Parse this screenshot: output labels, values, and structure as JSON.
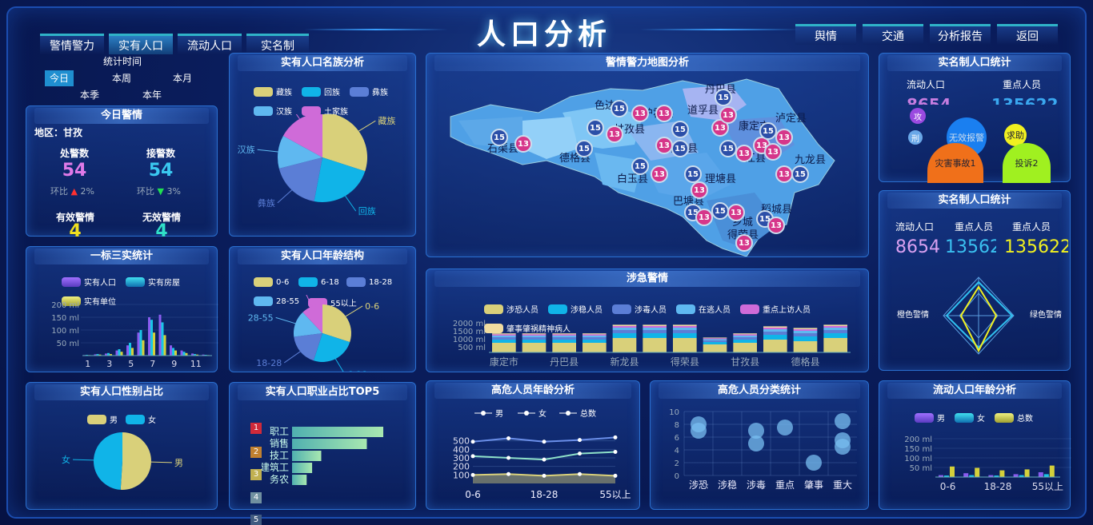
{
  "header": {
    "title": "人口分析"
  },
  "left_tabs": [
    "警情警力",
    "实有人口",
    "流动人口",
    "实名制"
  ],
  "right_tabs": [
    "舆情",
    "交通",
    "分析报告",
    "返回"
  ],
  "stat_time": {
    "title": "统计时间",
    "options": [
      "今日",
      "本周",
      "本月",
      "本季",
      "本年"
    ]
  },
  "today_alert": {
    "title": "今日警情",
    "region": "地区：甘孜",
    "handled_label": "处警数",
    "handled_value": "54",
    "handled_change": "环比 ",
    "handled_pct": "2%",
    "received_label": "接警数",
    "received_value": "54",
    "received_change": "环比 ",
    "received_pct": "3%",
    "valid_label": "有效警情",
    "valid_value": "4",
    "invalid_label": "无效警情",
    "invalid_value": "4",
    "colors": {
      "down": "#ff3030",
      "up": "#20e050"
    }
  },
  "yibiao": {
    "title": "一标三实统计",
    "legend": [
      "实有人口",
      "实有房屋",
      "实有单位"
    ],
    "chart_data": {
      "type": "bar",
      "categories": [
        "1",
        "2",
        "3",
        "4",
        "5",
        "6",
        "7",
        "8",
        "9",
        "10",
        "11",
        "12"
      ],
      "ylim": [
        0,
        200
      ],
      "yticks": [
        "200 ml",
        "150 ml",
        "100 ml",
        "50 ml"
      ],
      "xticks": [
        "1",
        "3",
        "5",
        "7",
        "9",
        "11"
      ],
      "series": [
        {
          "name": "实有人口",
          "values": [
            2,
            5,
            8,
            20,
            40,
            90,
            150,
            160,
            40,
            20,
            8,
            4
          ]
        },
        {
          "name": "实有房屋",
          "values": [
            3,
            6,
            10,
            25,
            50,
            100,
            140,
            130,
            30,
            15,
            6,
            3
          ]
        },
        {
          "name": "实有单位",
          "values": [
            2,
            4,
            6,
            15,
            30,
            60,
            90,
            80,
            20,
            10,
            4,
            2
          ]
        }
      ]
    }
  },
  "ethnic": {
    "title": "实有人口名族分析",
    "legend": [
      "藏族",
      "回族",
      "彝族",
      "汉族",
      "土家族"
    ],
    "chart_data": {
      "type": "pie",
      "labels": [
        "藏族",
        "回族",
        "彝族",
        "汉族",
        "土家族"
      ],
      "values": [
        30,
        23,
        18,
        12,
        17
      ]
    },
    "labels_out": [
      "藏族",
      "回族",
      "彝族",
      "汉族",
      "土家族"
    ]
  },
  "age_struct": {
    "title": "实有人口年龄结构",
    "legend": [
      "0-6",
      "6-18",
      "18-28",
      "28-55",
      "55以上"
    ],
    "chart_data": {
      "type": "pie",
      "labels": [
        "0-6",
        "6-18",
        "18-28",
        "28-55",
        "55以上"
      ],
      "values": [
        30,
        25,
        18,
        15,
        12
      ]
    },
    "labels_out": [
      "0-6",
      "6-18",
      "18-28",
      "28-55",
      "55以上"
    ]
  },
  "gender": {
    "title": "实有人口性别占比",
    "legend": [
      "男",
      "女"
    ],
    "chart_data": {
      "type": "pie",
      "labels": [
        "男",
        "女"
      ],
      "values": [
        51,
        49
      ]
    },
    "labels_out": [
      "男",
      "女"
    ]
  },
  "occupation": {
    "title": "实有人口职业占比TOP5",
    "ranks": [
      "1",
      "2",
      "3",
      "4",
      "5"
    ],
    "chart_data": {
      "type": "bar",
      "categories": [
        "职工",
        "销售",
        "技工",
        "建筑工",
        "务农"
      ],
      "values": [
        100,
        82,
        32,
        22,
        16
      ]
    }
  },
  "map": {
    "title": "警情警力地图分析",
    "counties": [
      "丹巴县",
      "色达县",
      "炉霍县",
      "道孚县",
      "泸定县",
      "甘孜县",
      "康定市",
      "石渠县",
      "新龙县",
      "德格县",
      "江县",
      "九龙县",
      "白玉县",
      "理塘县",
      "巴塘县",
      "稻城县",
      "乡城",
      "得荣县"
    ],
    "pin_values": [
      "15",
      "13"
    ]
  },
  "sheji": {
    "title": "涉急警情",
    "legend": [
      "涉恐人员",
      "涉稳人员",
      "涉毒人员",
      "在逃人员",
      "重点上访人员",
      "肇事肇祸精神病人"
    ],
    "chart_data": {
      "type": "bar",
      "categories": [
        "康定市",
        "泸定县",
        "丹巴县",
        "九龙县",
        "新龙县",
        "道孚县",
        "得荣县",
        "炉霍县",
        "甘孜县",
        "色达县",
        "德格县",
        "石渠县"
      ],
      "xticks": [
        "康定市",
        "丹巴县",
        "新龙县",
        "得荣县",
        "甘孜县",
        "德格县"
      ],
      "yticks": [
        "2000 ml",
        "1500 ml",
        "1000 ml",
        "500 ml"
      ],
      "ylim": [
        0,
        2000
      ],
      "series": [
        {
          "name": "涉恐人员",
          "values": [
            600,
            600,
            600,
            600,
            900,
            900,
            900,
            500,
            600,
            800,
            700,
            900
          ]
        },
        {
          "name": "涉稳人员",
          "values": [
            200,
            200,
            200,
            200,
            300,
            300,
            300,
            150,
            200,
            300,
            300,
            300
          ]
        },
        {
          "name": "涉毒人员",
          "values": [
            150,
            150,
            150,
            150,
            200,
            200,
            200,
            100,
            150,
            200,
            200,
            200
          ]
        },
        {
          "name": "在逃人员",
          "values": [
            100,
            100,
            100,
            100,
            150,
            150,
            150,
            80,
            100,
            150,
            150,
            150
          ]
        },
        {
          "name": "重点上访人员",
          "values": [
            80,
            80,
            80,
            80,
            100,
            100,
            100,
            60,
            80,
            100,
            100,
            100
          ]
        },
        {
          "name": "肇事肇祸精神病人",
          "values": [
            60,
            60,
            60,
            60,
            80,
            80,
            80,
            40,
            60,
            80,
            80,
            80
          ]
        }
      ]
    }
  },
  "high_risk_age": {
    "title": "高危人员年龄分析",
    "legend": [
      "男",
      "女",
      "总数"
    ],
    "chart_data": {
      "type": "line",
      "categories": [
        "0-6",
        "6-18",
        "18-28",
        "28-55",
        "55以上"
      ],
      "xticks": [
        "0-6",
        "18-28",
        "55以上"
      ],
      "yticks": [
        "500",
        "400",
        "300",
        "200",
        "100"
      ],
      "ylim": [
        0,
        600
      ],
      "series": [
        {
          "name": "总数",
          "values": [
            490,
            530,
            490,
            510,
            540
          ]
        },
        {
          "name": "女",
          "values": [
            320,
            300,
            280,
            350,
            370
          ]
        },
        {
          "name": "男",
          "values": [
            100,
            110,
            90,
            110,
            90
          ]
        }
      ]
    }
  },
  "high_risk_class": {
    "title": "高危人员分类统计",
    "chart_data": {
      "type": "scatter",
      "categories": [
        "涉恐",
        "涉稳",
        "涉毒",
        "重点",
        "肇事",
        "重大"
      ],
      "yticks": [
        "10",
        "8",
        "6",
        "4",
        "2",
        "0"
      ],
      "ylim": [
        0,
        10
      ],
      "points": [
        [
          0,
          8
        ],
        [
          0,
          7
        ],
        [
          2,
          7
        ],
        [
          2,
          5
        ],
        [
          3,
          7.5
        ],
        [
          4,
          2
        ],
        [
          5,
          8.5
        ],
        [
          5,
          5.5
        ],
        [
          5,
          4.5
        ]
      ]
    }
  },
  "realname_top": {
    "title": "实名制人口统计",
    "col1": "流动人口",
    "col2": "重点人员",
    "val1": "8654",
    "val2": "135622",
    "bubbles": [
      "无效报警",
      "求助",
      "灾害事故1",
      "投诉2",
      "刑",
      "攻"
    ]
  },
  "realname_bottom": {
    "title": "实名制人口统计",
    "labels": [
      "流动人口",
      "重点人员",
      "重点人员"
    ],
    "values": [
      "8654",
      "135622",
      "135622"
    ],
    "radar_left": "橙色警情",
    "radar_right": "绿色警情"
  },
  "floating_age": {
    "title": "流动人口年龄分析",
    "legend": [
      "男",
      "女",
      "总数"
    ],
    "chart_data": {
      "type": "bar",
      "categories": [
        "0-6",
        "6-18",
        "18-28",
        "28-55",
        "55以上"
      ],
      "xticks": [
        "0-6",
        "18-28",
        "55以上"
      ],
      "yticks": [
        "200 ml",
        "150 ml",
        "100 ml",
        "50 ml"
      ],
      "ylim": [
        0,
        200
      ],
      "series": [
        {
          "name": "男",
          "values": [
            10,
            20,
            10,
            15,
            25
          ]
        },
        {
          "name": "女",
          "values": [
            8,
            10,
            8,
            10,
            15
          ]
        },
        {
          "name": "总数",
          "values": [
            55,
            48,
            35,
            40,
            60
          ]
        }
      ]
    }
  },
  "colors": {
    "c1": "#d9d07a",
    "c2": "#10b4e8",
    "c3": "#5b7ed6",
    "c4": "#5fb8f0",
    "c5": "#cf6bd8",
    "c6": "#f0dca0",
    "purple": "#8a5cf0",
    "cyan": "#19c6e6",
    "yellow": "#d4d03a"
  }
}
